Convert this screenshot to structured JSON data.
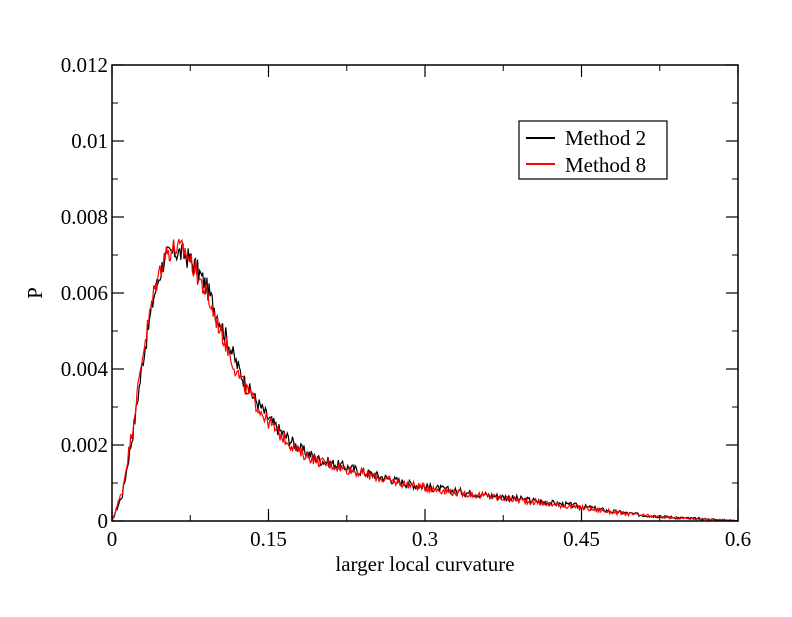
{
  "chart_data": {
    "type": "line",
    "title": "",
    "xlabel": "larger local curvature",
    "ylabel": "P",
    "xlim": [
      0,
      0.6
    ],
    "ylim": [
      0,
      0.012
    ],
    "xticks": [
      0,
      0.15,
      0.3,
      0.45,
      0.6
    ],
    "xtick_labels": [
      "0",
      "0.15",
      "0.3",
      "0.45",
      "0.6"
    ],
    "yticks": [
      0,
      0.002,
      0.004,
      0.006,
      0.008,
      0.01,
      0.012
    ],
    "ytick_labels": [
      "0",
      "0.002",
      "0.004",
      "0.006",
      "0.008",
      "0.01",
      "0.012"
    ],
    "grid": false,
    "legend_position": "top-right",
    "series": [
      {
        "name": "Method 2",
        "color": "#000000",
        "x": [
          0,
          0.01,
          0.02,
          0.03,
          0.04,
          0.05,
          0.06,
          0.07,
          0.08,
          0.09,
          0.1,
          0.11,
          0.12,
          0.13,
          0.14,
          0.15,
          0.16,
          0.18,
          0.2,
          0.22,
          0.24,
          0.26,
          0.28,
          0.3,
          0.33,
          0.36,
          0.39,
          0.42,
          0.45,
          0.48,
          0.51,
          0.54,
          0.57,
          0.6
        ],
        "y": [
          0,
          0.0007,
          0.0023,
          0.0043,
          0.0059,
          0.0069,
          0.0071,
          0.007,
          0.0067,
          0.0062,
          0.0055,
          0.0048,
          0.0041,
          0.0035,
          0.0031,
          0.0027,
          0.0024,
          0.0019,
          0.0016,
          0.00145,
          0.0013,
          0.00115,
          0.001,
          0.0009,
          0.00078,
          0.00068,
          0.00058,
          0.00048,
          0.00038,
          0.00025,
          0.00015,
          9e-05,
          5e-05,
          1e-05
        ]
      },
      {
        "name": "Method 8",
        "color": "#ff0000",
        "x": [
          0,
          0.01,
          0.02,
          0.03,
          0.04,
          0.05,
          0.06,
          0.07,
          0.08,
          0.09,
          0.1,
          0.11,
          0.12,
          0.13,
          0.14,
          0.15,
          0.16,
          0.18,
          0.2,
          0.22,
          0.24,
          0.26,
          0.28,
          0.3,
          0.33,
          0.36,
          0.39,
          0.42,
          0.45,
          0.48,
          0.51,
          0.54,
          0.57,
          0.6
        ],
        "y": [
          0,
          0.0008,
          0.0025,
          0.0045,
          0.006,
          0.007,
          0.0072,
          0.0071,
          0.0066,
          0.006,
          0.0053,
          0.0046,
          0.0039,
          0.0034,
          0.003,
          0.0026,
          0.0023,
          0.0018,
          0.00155,
          0.0014,
          0.00125,
          0.0011,
          0.00098,
          0.00088,
          0.00075,
          0.00065,
          0.00055,
          0.00045,
          0.00035,
          0.00023,
          0.00014,
          8e-05,
          4e-05,
          1e-05
        ]
      }
    ]
  }
}
